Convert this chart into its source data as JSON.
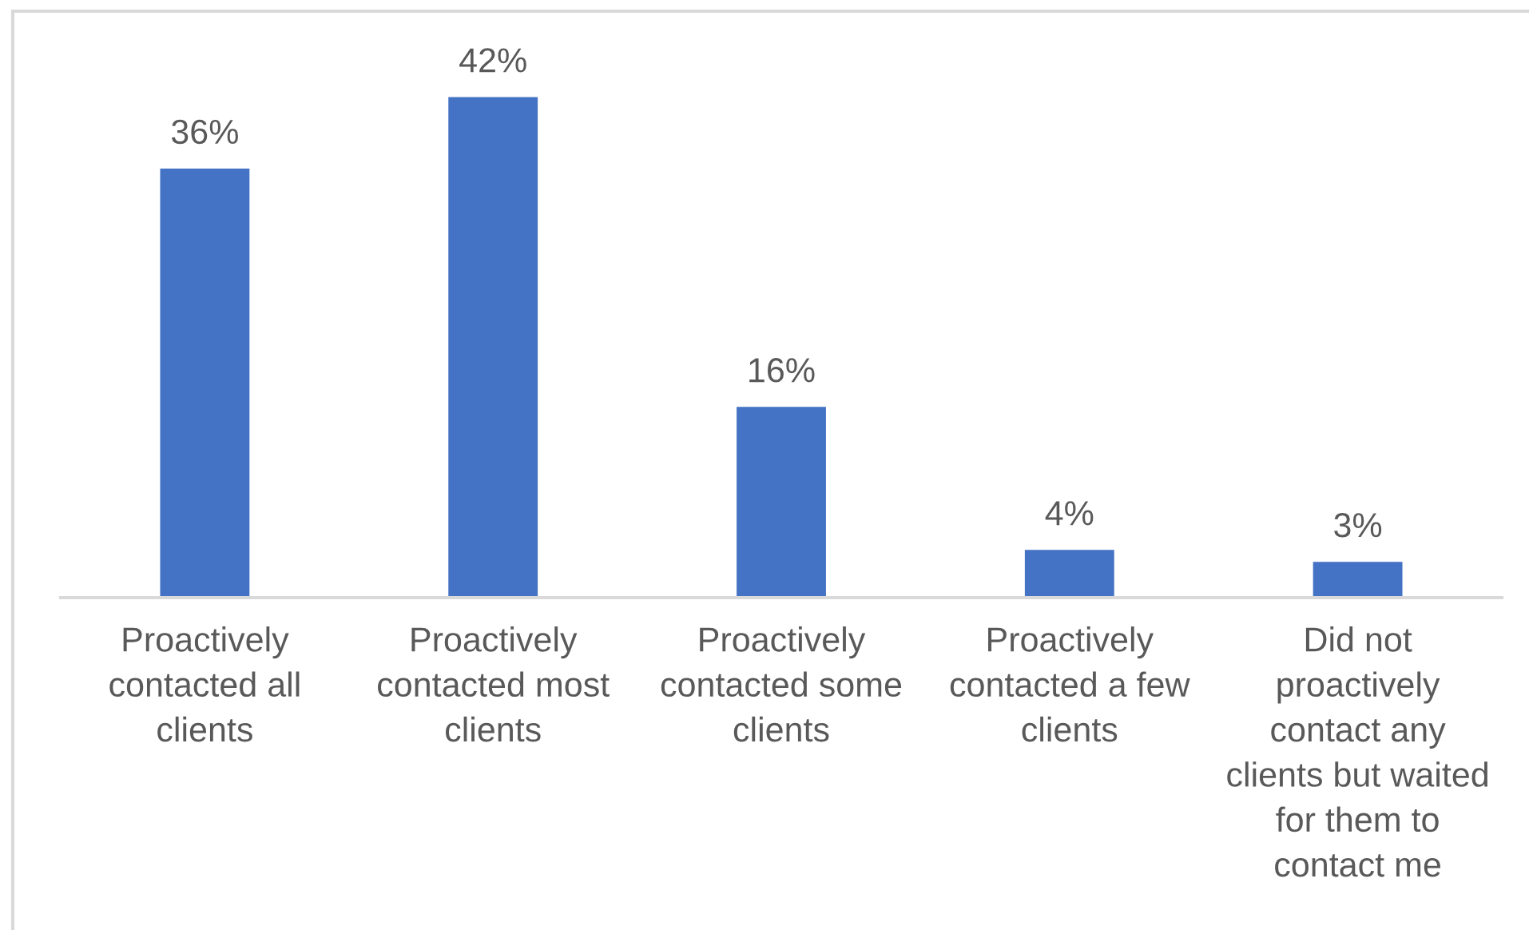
{
  "chart_data": {
    "type": "bar",
    "categories": [
      "Proactively\ncontacted all\nclients",
      "Proactively\ncontacted most\nclients",
      "Proactively\ncontacted some\nclients",
      "Proactively\ncontacted a few\nclients",
      "Did not\nproactively\ncontact any\nclients but waited\nfor them to\ncontact me"
    ],
    "values": [
      36,
      42,
      16,
      4,
      3
    ],
    "value_labels": [
      "36%",
      "42%",
      "16%",
      "4%",
      "3%"
    ],
    "color": "#4472c4",
    "tick_labels": "x"
  }
}
